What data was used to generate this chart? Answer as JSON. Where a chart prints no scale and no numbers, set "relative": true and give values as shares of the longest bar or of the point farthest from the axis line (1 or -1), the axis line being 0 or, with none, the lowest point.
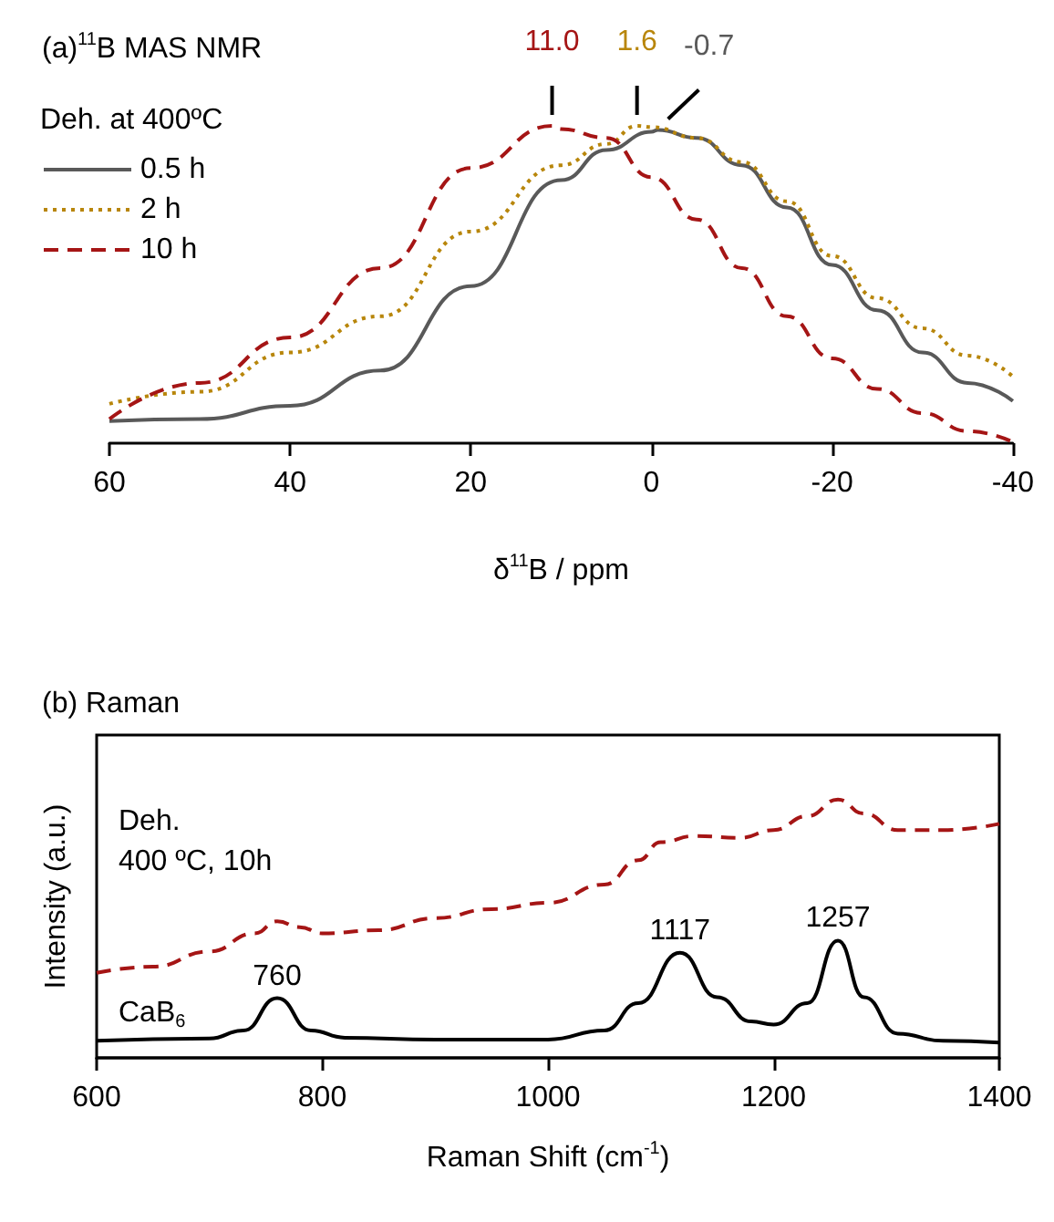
{
  "chart_data": [
    {
      "type": "line",
      "title": "(a)$^{11}$B MAS NMR",
      "xlabel": "δ$^{11}$B / ppm",
      "legend_title": "Deh. at 400ºC",
      "legend": "top left",
      "relative": true,
      "tick_labels": "x",
      "xlim": [
        60,
        -40
      ],
      "xticks": [
        60,
        40,
        20,
        0,
        -20,
        -40
      ],
      "series": [
        {
          "name": "0.5 h",
          "color": "#595959",
          "line_style": "solid",
          "x": [
            60,
            50,
            40,
            30,
            20,
            10,
            5,
            0,
            -0.7,
            -5,
            -10,
            -15,
            -20,
            -25,
            -30,
            -35,
            -40
          ],
          "values": [
            0.07,
            0.076,
            0.118,
            0.229,
            0.495,
            0.829,
            0.924,
            0.981,
            0.987,
            0.962,
            0.876,
            0.743,
            0.562,
            0.419,
            0.286,
            0.19,
            0.133
          ]
        },
        {
          "name": "2 h",
          "color": "#b8860b",
          "line_style": "dotted",
          "x": [
            60,
            50,
            40,
            30,
            20,
            10,
            5,
            1.6,
            0,
            -5,
            -10,
            -15,
            -20,
            -25,
            -30,
            -35,
            -40
          ],
          "values": [
            0.124,
            0.162,
            0.286,
            0.4,
            0.667,
            0.876,
            0.943,
            1.0,
            0.996,
            0.962,
            0.886,
            0.762,
            0.59,
            0.457,
            0.362,
            0.276,
            0.21
          ]
        },
        {
          "name": "10 h",
          "color": "#a51515",
          "line_style": "dashed",
          "x": [
            60,
            50,
            40,
            30,
            20,
            11,
            10,
            5,
            0,
            -5,
            -10,
            -15,
            -20,
            -25,
            -30,
            -35,
            -40
          ],
          "values": [
            0.076,
            0.19,
            0.333,
            0.552,
            0.867,
            1.0,
            0.99,
            0.962,
            0.838,
            0.705,
            0.552,
            0.4,
            0.267,
            0.171,
            0.095,
            0.038,
            0.004
          ]
        }
      ],
      "annotations": [
        {
          "text": "11.0",
          "x": 11,
          "y": 1.0
        },
        {
          "text": "1.6",
          "x": 1.6,
          "y": 1.0
        },
        {
          "text": "-0.7",
          "x": -0.7,
          "y": 0.987
        }
      ]
    },
    {
      "type": "line",
      "title": "(b) Raman",
      "xlabel": "Raman Shift (cm$^{-1}$)",
      "ylabel": "Intensity (a.u.)",
      "relative": true,
      "tick_labels": "x",
      "xlim": [
        600,
        1400
      ],
      "xticks": [
        600,
        800,
        1000,
        1200,
        1400
      ],
      "series": [
        {
          "name": "Deh.\n400 ºC, 10h",
          "color": "#a51515",
          "line_style": "dashed",
          "x": [
            600,
            650,
            700,
            740,
            760,
            780,
            800,
            850,
            900,
            950,
            1000,
            1050,
            1080,
            1100,
            1130,
            1170,
            1200,
            1230,
            1257,
            1280,
            1310,
            1350,
            1400
          ],
          "values": [
            0.329,
            0.353,
            0.412,
            0.482,
            0.529,
            0.506,
            0.482,
            0.494,
            0.541,
            0.576,
            0.6,
            0.671,
            0.765,
            0.835,
            0.859,
            0.852,
            0.882,
            0.936,
            1.0,
            0.946,
            0.882,
            0.882,
            0.906
          ]
        },
        {
          "name": "CaB$_{6}$",
          "color": "#000000",
          "line_style": "solid",
          "x": [
            600,
            700,
            730,
            760,
            790,
            820,
            900,
            1000,
            1050,
            1080,
            1117,
            1150,
            1180,
            1200,
            1230,
            1257,
            1280,
            1310,
            1350,
            1400
          ],
          "values": [
            0.066,
            0.075,
            0.106,
            0.231,
            0.106,
            0.078,
            0.071,
            0.071,
            0.106,
            0.212,
            0.407,
            0.235,
            0.141,
            0.129,
            0.212,
            0.454,
            0.235,
            0.094,
            0.066,
            0.059
          ]
        }
      ],
      "annotations": [
        {
          "text": "760",
          "x": 760,
          "y": 0.231
        },
        {
          "text": "1117",
          "x": 1117,
          "y": 0.407
        },
        {
          "text": "1257",
          "x": 1257,
          "y": 0.454
        }
      ]
    }
  ]
}
